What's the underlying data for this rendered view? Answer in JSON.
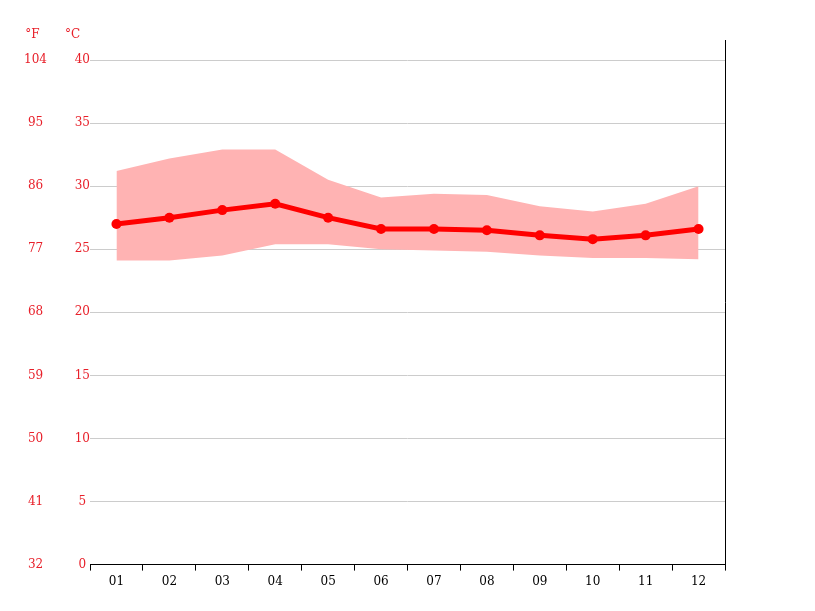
{
  "chart_data": {
    "type": "line",
    "ylabel": "°C",
    "y2label": "°F",
    "categories": [
      "01",
      "02",
      "03",
      "04",
      "05",
      "06",
      "07",
      "08",
      "09",
      "10",
      "11",
      "12"
    ],
    "series": [
      {
        "type": "line",
        "color": "#ff0000",
        "marker": "circle",
        "values": [
          27.0,
          27.5,
          28.1,
          28.6,
          27.5,
          26.6,
          26.6,
          26.5,
          26.1,
          25.8,
          26.1,
          26.6
        ]
      },
      {
        "type": "area",
        "color": "#ffb3b3",
        "values": [
          31.2,
          32.2,
          32.9,
          32.9,
          30.5,
          29.1,
          29.4,
          29.3,
          28.4,
          28.0,
          28.6,
          30.0
        ]
      },
      {
        "type": "area",
        "color": "#ffb3b3",
        "values": [
          24.1,
          24.1,
          24.5,
          25.4,
          25.4,
          25.0,
          24.9,
          24.8,
          24.5,
          24.3,
          24.3,
          24.2
        ]
      }
    ],
    "ylim": [
      0,
      40
    ],
    "yticks": [
      0,
      5,
      10,
      15,
      20,
      25,
      30,
      35,
      40
    ],
    "y2lim": [
      32,
      104
    ],
    "y2ticks": [
      32,
      41,
      50,
      59,
      68,
      77,
      86,
      95,
      104
    ],
    "grid": true
  }
}
